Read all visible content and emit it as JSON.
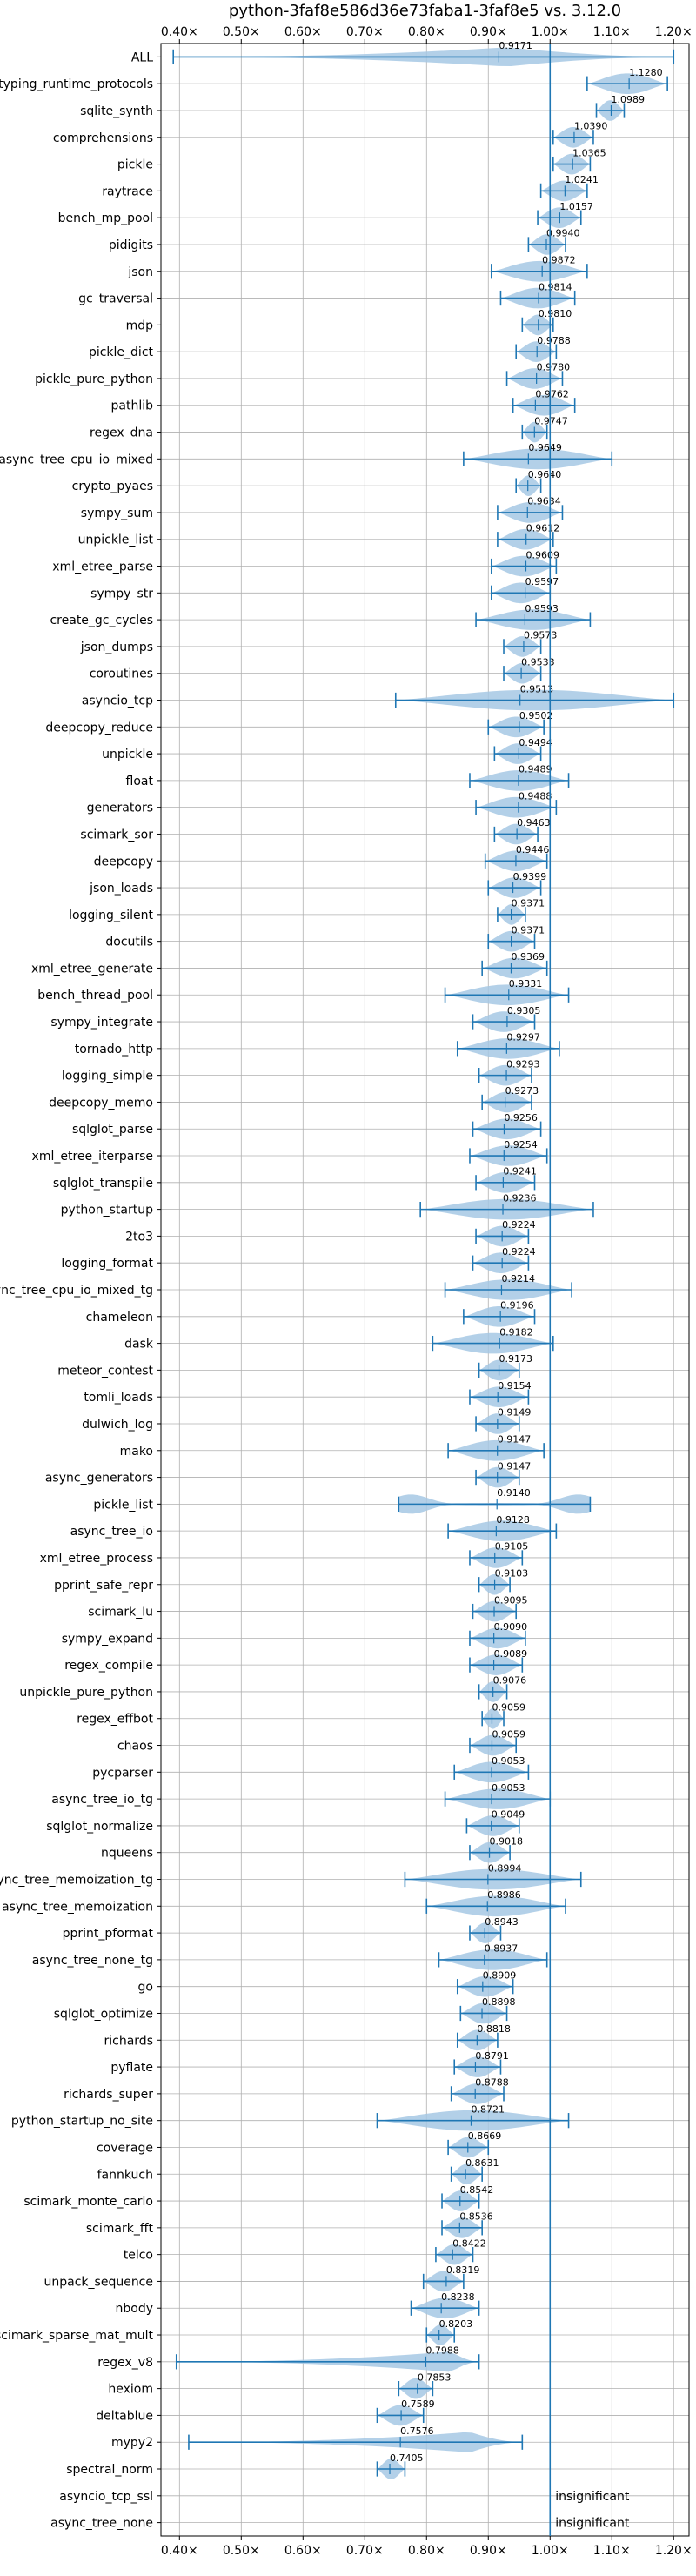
{
  "chart_data": {
    "type": "violin",
    "title": "python-3faf8e586d36e73faba1-3faf8e5 vs. 3.12.0",
    "xlim": [
      0.37,
      1.225
    ],
    "x_ticks": [
      0.4,
      0.5,
      0.6,
      0.7,
      0.8,
      0.9,
      1.0,
      1.1,
      1.2
    ],
    "x_tick_labels": [
      "0.40×",
      "0.50×",
      "0.60×",
      "0.70×",
      "0.80×",
      "0.90×",
      "1.00×",
      "1.10×",
      "1.20×"
    ],
    "reference_line": 1.0,
    "grid": true,
    "accent_color": "#1f77b4",
    "violin_color": "#a6c8e4",
    "benchmarks": [
      {
        "name": "ALL",
        "value": 0.9171,
        "label": "0.9171",
        "min": 0.39,
        "max": 1.2,
        "width": 0.75,
        "peak": 0.93
      },
      {
        "name": "typing_runtime_protocols",
        "value": 1.128,
        "label": "1.1280",
        "min": 1.06,
        "max": 1.19,
        "width": 0.8
      },
      {
        "name": "sqlite_synth",
        "value": 1.0989,
        "label": "1.0989",
        "min": 1.075,
        "max": 1.12,
        "width": 0.8
      },
      {
        "name": "comprehensions",
        "value": 1.039,
        "label": "1.0390",
        "min": 1.005,
        "max": 1.07,
        "width": 0.8
      },
      {
        "name": "pickle",
        "value": 1.0365,
        "label": "1.0365",
        "min": 1.005,
        "max": 1.065,
        "width": 0.8
      },
      {
        "name": "raytrace",
        "value": 1.0241,
        "label": "1.0241",
        "min": 0.985,
        "max": 1.06,
        "width": 0.8
      },
      {
        "name": "bench_mp_pool",
        "value": 1.0157,
        "label": "1.0157",
        "min": 0.98,
        "max": 1.05,
        "width": 0.8
      },
      {
        "name": "pidigits",
        "value": 0.994,
        "label": "0.9940",
        "min": 0.965,
        "max": 1.025,
        "width": 0.8
      },
      {
        "name": "json",
        "value": 0.9872,
        "label": "0.9872",
        "min": 0.905,
        "max": 1.06,
        "width": 0.8
      },
      {
        "name": "gc_traversal",
        "value": 0.9814,
        "label": "0.9814",
        "min": 0.92,
        "max": 1.04,
        "width": 0.8
      },
      {
        "name": "mdp",
        "value": 0.981,
        "label": "0.9810",
        "min": 0.955,
        "max": 1.005,
        "width": 0.8
      },
      {
        "name": "pickle_dict",
        "value": 0.9788,
        "label": "0.9788",
        "min": 0.945,
        "max": 1.01,
        "width": 0.8
      },
      {
        "name": "pickle_pure_python",
        "value": 0.978,
        "label": "0.9780",
        "min": 0.93,
        "max": 1.02,
        "width": 0.8
      },
      {
        "name": "pathlib",
        "value": 0.9762,
        "label": "0.9762",
        "min": 0.94,
        "max": 1.04,
        "width": 0.8
      },
      {
        "name": "regex_dna",
        "value": 0.9747,
        "label": "0.9747",
        "min": 0.955,
        "max": 0.995,
        "width": 0.8
      },
      {
        "name": "async_tree_cpu_io_mixed",
        "value": 0.9649,
        "label": "0.9649",
        "min": 0.86,
        "max": 1.1,
        "width": 0.8
      },
      {
        "name": "crypto_pyaes",
        "value": 0.964,
        "label": "0.9640",
        "min": 0.945,
        "max": 0.985,
        "width": 0.8
      },
      {
        "name": "sympy_sum",
        "value": 0.9634,
        "label": "0.9634",
        "min": 0.915,
        "max": 1.02,
        "width": 0.8
      },
      {
        "name": "unpickle_list",
        "value": 0.9612,
        "label": "0.9612",
        "min": 0.915,
        "max": 1.005,
        "width": 0.8
      },
      {
        "name": "xml_etree_parse",
        "value": 0.9609,
        "label": "0.9609",
        "min": 0.905,
        "max": 1.01,
        "width": 0.8
      },
      {
        "name": "sympy_str",
        "value": 0.9597,
        "label": "0.9597",
        "min": 0.905,
        "max": 1.0,
        "width": 0.8
      },
      {
        "name": "create_gc_cycles",
        "value": 0.9593,
        "label": "0.9593",
        "min": 0.88,
        "max": 1.065,
        "width": 0.8
      },
      {
        "name": "json_dumps",
        "value": 0.9573,
        "label": "0.9573",
        "min": 0.925,
        "max": 0.985,
        "width": 0.8
      },
      {
        "name": "coroutines",
        "value": 0.9533,
        "label": "0.9533",
        "min": 0.925,
        "max": 0.985,
        "width": 0.8
      },
      {
        "name": "asyncio_tcp",
        "value": 0.9513,
        "label": "0.9513",
        "min": 0.75,
        "max": 1.2,
        "width": 0.8
      },
      {
        "name": "deepcopy_reduce",
        "value": 0.9502,
        "label": "0.9502",
        "min": 0.9,
        "max": 0.99,
        "width": 0.8
      },
      {
        "name": "unpickle",
        "value": 0.9494,
        "label": "0.9494",
        "min": 0.91,
        "max": 0.985,
        "width": 0.8
      },
      {
        "name": "float",
        "value": 0.9489,
        "label": "0.9489",
        "min": 0.87,
        "max": 1.03,
        "width": 0.8
      },
      {
        "name": "generators",
        "value": 0.9488,
        "label": "0.9488",
        "min": 0.88,
        "max": 1.01,
        "width": 0.8
      },
      {
        "name": "scimark_sor",
        "value": 0.9463,
        "label": "0.9463",
        "min": 0.91,
        "max": 0.98,
        "width": 0.8
      },
      {
        "name": "deepcopy",
        "value": 0.9446,
        "label": "0.9446",
        "min": 0.895,
        "max": 0.995,
        "width": 0.8
      },
      {
        "name": "json_loads",
        "value": 0.9399,
        "label": "0.9399",
        "min": 0.9,
        "max": 0.985,
        "width": 0.8
      },
      {
        "name": "logging_silent",
        "value": 0.9371,
        "label": "0.9371",
        "min": 0.915,
        "max": 0.96,
        "width": 0.8
      },
      {
        "name": "docutils",
        "value": 0.9371,
        "label": "0.9371",
        "min": 0.9,
        "max": 0.975,
        "width": 0.8
      },
      {
        "name": "xml_etree_generate",
        "value": 0.9369,
        "label": "0.9369",
        "min": 0.89,
        "max": 0.995,
        "width": 0.8
      },
      {
        "name": "bench_thread_pool",
        "value": 0.9331,
        "label": "0.9331",
        "min": 0.83,
        "max": 1.03,
        "width": 0.8
      },
      {
        "name": "sympy_integrate",
        "value": 0.9305,
        "label": "0.9305",
        "min": 0.875,
        "max": 0.975,
        "width": 0.8
      },
      {
        "name": "tornado_http",
        "value": 0.9297,
        "label": "0.9297",
        "min": 0.85,
        "max": 1.015,
        "width": 0.8
      },
      {
        "name": "logging_simple",
        "value": 0.9293,
        "label": "0.9293",
        "min": 0.885,
        "max": 0.97,
        "width": 0.8
      },
      {
        "name": "deepcopy_memo",
        "value": 0.9273,
        "label": "0.9273",
        "min": 0.89,
        "max": 0.97,
        "width": 0.8
      },
      {
        "name": "sqlglot_parse",
        "value": 0.9256,
        "label": "0.9256",
        "min": 0.875,
        "max": 0.985,
        "width": 0.8
      },
      {
        "name": "xml_etree_iterparse",
        "value": 0.9254,
        "label": "0.9254",
        "min": 0.87,
        "max": 0.995,
        "width": 0.8
      },
      {
        "name": "sqlglot_transpile",
        "value": 0.9241,
        "label": "0.9241",
        "min": 0.88,
        "max": 0.975,
        "width": 0.8
      },
      {
        "name": "python_startup",
        "value": 0.9236,
        "label": "0.9236",
        "min": 0.79,
        "max": 1.07,
        "width": 0.8
      },
      {
        "name": "2to3",
        "value": 0.9224,
        "label": "0.9224",
        "min": 0.88,
        "max": 0.965,
        "width": 0.8
      },
      {
        "name": "logging_format",
        "value": 0.9224,
        "label": "0.9224",
        "min": 0.875,
        "max": 0.965,
        "width": 0.8
      },
      {
        "name": "async_tree_cpu_io_mixed_tg",
        "value": 0.9214,
        "label": "0.9214",
        "min": 0.83,
        "max": 1.035,
        "width": 0.8
      },
      {
        "name": "chameleon",
        "value": 0.9196,
        "label": "0.9196",
        "min": 0.86,
        "max": 0.975,
        "width": 0.8
      },
      {
        "name": "dask",
        "value": 0.9182,
        "label": "0.9182",
        "min": 0.81,
        "max": 1.005,
        "width": 0.8
      },
      {
        "name": "meteor_contest",
        "value": 0.9173,
        "label": "0.9173",
        "min": 0.885,
        "max": 0.95,
        "width": 0.8
      },
      {
        "name": "tomli_loads",
        "value": 0.9154,
        "label": "0.9154",
        "min": 0.87,
        "max": 0.965,
        "width": 0.8
      },
      {
        "name": "dulwich_log",
        "value": 0.9149,
        "label": "0.9149",
        "min": 0.88,
        "max": 0.95,
        "width": 0.8
      },
      {
        "name": "mako",
        "value": 0.9147,
        "label": "0.9147",
        "min": 0.835,
        "max": 0.99,
        "width": 0.8
      },
      {
        "name": "async_generators",
        "value": 0.9147,
        "label": "0.9147",
        "min": 0.88,
        "max": 0.95,
        "width": 0.8
      },
      {
        "name": "pickle_list",
        "value": 0.914,
        "label": "0.9140",
        "min": 0.755,
        "max": 1.065,
        "width": 0.75,
        "bimodal": [
          0.775,
          1.045
        ]
      },
      {
        "name": "async_tree_io",
        "value": 0.9128,
        "label": "0.9128",
        "min": 0.835,
        "max": 1.01,
        "width": 0.8
      },
      {
        "name": "xml_etree_process",
        "value": 0.9105,
        "label": "0.9105",
        "min": 0.87,
        "max": 0.955,
        "width": 0.8
      },
      {
        "name": "pprint_safe_repr",
        "value": 0.9103,
        "label": "0.9103",
        "min": 0.885,
        "max": 0.935,
        "width": 0.8
      },
      {
        "name": "scimark_lu",
        "value": 0.9095,
        "label": "0.9095",
        "min": 0.875,
        "max": 0.945,
        "width": 0.8
      },
      {
        "name": "sympy_expand",
        "value": 0.909,
        "label": "0.9090",
        "min": 0.87,
        "max": 0.96,
        "width": 0.8
      },
      {
        "name": "regex_compile",
        "value": 0.9089,
        "label": "0.9089",
        "min": 0.87,
        "max": 0.955,
        "width": 0.8
      },
      {
        "name": "unpickle_pure_python",
        "value": 0.9076,
        "label": "0.9076",
        "min": 0.885,
        "max": 0.93,
        "width": 0.8
      },
      {
        "name": "regex_effbot",
        "value": 0.9059,
        "label": "0.9059",
        "min": 0.89,
        "max": 0.925,
        "width": 0.8
      },
      {
        "name": "chaos",
        "value": 0.9059,
        "label": "0.9059",
        "min": 0.87,
        "max": 0.945,
        "width": 0.8
      },
      {
        "name": "pycparser",
        "value": 0.9053,
        "label": "0.9053",
        "min": 0.845,
        "max": 0.965,
        "width": 0.8
      },
      {
        "name": "async_tree_io_tg",
        "value": 0.9053,
        "label": "0.9053",
        "min": 0.83,
        "max": 1.0,
        "width": 0.8
      },
      {
        "name": "sqlglot_normalize",
        "value": 0.9049,
        "label": "0.9049",
        "min": 0.865,
        "max": 0.95,
        "width": 0.8
      },
      {
        "name": "nqueens",
        "value": 0.9018,
        "label": "0.9018",
        "min": 0.87,
        "max": 0.935,
        "width": 0.8
      },
      {
        "name": "async_tree_memoization_tg",
        "value": 0.8994,
        "label": "0.8994",
        "min": 0.765,
        "max": 1.05,
        "width": 0.8
      },
      {
        "name": "async_tree_memoization",
        "value": 0.8986,
        "label": "0.8986",
        "min": 0.8,
        "max": 1.025,
        "width": 0.8
      },
      {
        "name": "pprint_pformat",
        "value": 0.8943,
        "label": "0.8943",
        "min": 0.87,
        "max": 0.92,
        "width": 0.8
      },
      {
        "name": "async_tree_none_tg",
        "value": 0.8937,
        "label": "0.8937",
        "min": 0.82,
        "max": 0.995,
        "width": 0.8
      },
      {
        "name": "go",
        "value": 0.8909,
        "label": "0.8909",
        "min": 0.85,
        "max": 0.94,
        "width": 0.8
      },
      {
        "name": "sqlglot_optimize",
        "value": 0.8898,
        "label": "0.8898",
        "min": 0.855,
        "max": 0.93,
        "width": 0.8
      },
      {
        "name": "richards",
        "value": 0.8818,
        "label": "0.8818",
        "min": 0.85,
        "max": 0.915,
        "width": 0.8
      },
      {
        "name": "pyflate",
        "value": 0.8791,
        "label": "0.8791",
        "min": 0.845,
        "max": 0.92,
        "width": 0.8
      },
      {
        "name": "richards_super",
        "value": 0.8788,
        "label": "0.8788",
        "min": 0.84,
        "max": 0.925,
        "width": 0.8
      },
      {
        "name": "python_startup_no_site",
        "value": 0.8721,
        "label": "0.8721",
        "min": 0.72,
        "max": 1.03,
        "width": 0.8
      },
      {
        "name": "coverage",
        "value": 0.8669,
        "label": "0.8669",
        "min": 0.835,
        "max": 0.9,
        "width": 0.8
      },
      {
        "name": "fannkuch",
        "value": 0.8631,
        "label": "0.8631",
        "min": 0.84,
        "max": 0.89,
        "width": 0.8
      },
      {
        "name": "scimark_monte_carlo",
        "value": 0.8542,
        "label": "0.8542",
        "min": 0.825,
        "max": 0.885,
        "width": 0.8
      },
      {
        "name": "scimark_fft",
        "value": 0.8536,
        "label": "0.8536",
        "min": 0.825,
        "max": 0.89,
        "width": 0.8
      },
      {
        "name": "telco",
        "value": 0.8422,
        "label": "0.8422",
        "min": 0.815,
        "max": 0.875,
        "width": 0.8
      },
      {
        "name": "unpack_sequence",
        "value": 0.8319,
        "label": "0.8319",
        "min": 0.795,
        "max": 0.86,
        "width": 0.8
      },
      {
        "name": "nbody",
        "value": 0.8238,
        "label": "0.8238",
        "min": 0.775,
        "max": 0.885,
        "width": 0.8
      },
      {
        "name": "scimark_sparse_mat_mult",
        "value": 0.8203,
        "label": "0.8203",
        "min": 0.8,
        "max": 0.845,
        "width": 0.8
      },
      {
        "name": "regex_v8",
        "value": 0.7988,
        "label": "0.7988",
        "min": 0.395,
        "max": 0.885,
        "width": 0.8,
        "peak": 0.84
      },
      {
        "name": "hexiom",
        "value": 0.7853,
        "label": "0.7853",
        "min": 0.755,
        "max": 0.81,
        "width": 0.8
      },
      {
        "name": "deltablue",
        "value": 0.7589,
        "label": "0.7589",
        "min": 0.72,
        "max": 0.795,
        "width": 0.8
      },
      {
        "name": "mypy2",
        "value": 0.7576,
        "label": "0.7576",
        "min": 0.415,
        "max": 0.955,
        "width": 0.8,
        "peak": 0.87
      },
      {
        "name": "spectral_norm",
        "value": 0.7405,
        "label": "0.7405",
        "min": 0.72,
        "max": 0.765,
        "width": 0.8
      },
      {
        "name": "asyncio_tcp_ssl",
        "value": null,
        "label": "insignificant"
      },
      {
        "name": "async_tree_none",
        "value": null,
        "label": "insignificant"
      }
    ]
  }
}
